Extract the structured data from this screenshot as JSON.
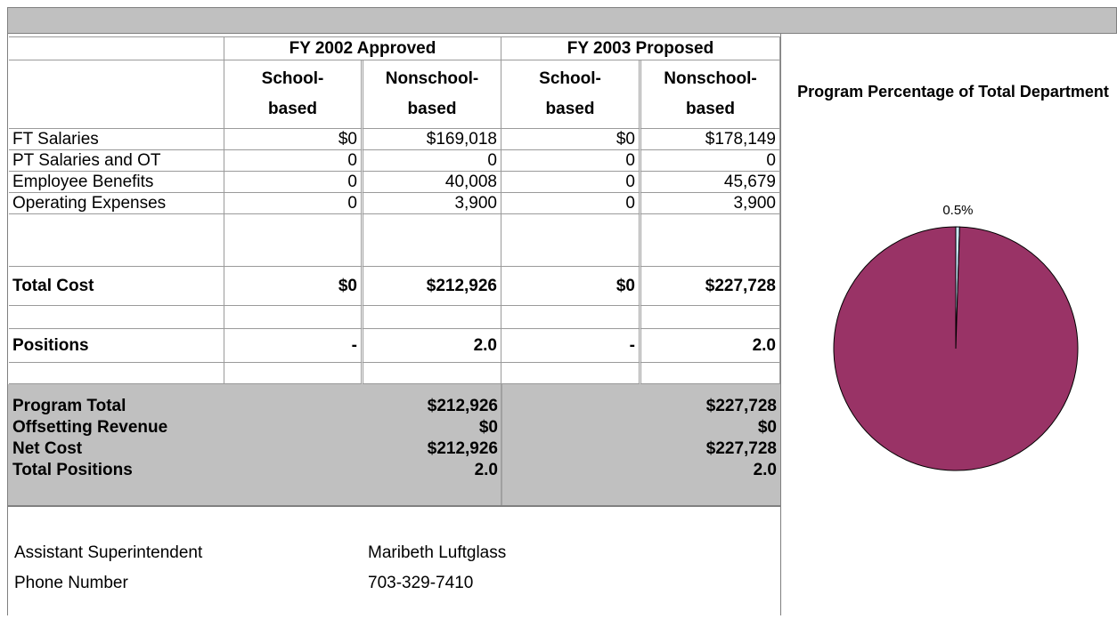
{
  "header": {
    "groups": [
      "FY 2002 Approved",
      "FY 2003 Proposed"
    ],
    "columns": [
      [
        "School-",
        "based"
      ],
      [
        "Nonschool-",
        "based"
      ],
      [
        "School-",
        "based"
      ],
      [
        "Nonschool-",
        "based"
      ]
    ]
  },
  "table": {
    "rows": [
      [
        "FT Salaries",
        "$0",
        "$169,018",
        "$0",
        "$178,149"
      ],
      [
        "PT Salaries and OT",
        "0",
        "0",
        "0",
        "0"
      ],
      [
        "Employee Benefits",
        "0",
        "40,008",
        "0",
        "45,679"
      ],
      [
        "Operating Expenses",
        "0",
        "3,900",
        "0",
        "3,900"
      ]
    ],
    "total_cost": [
      "Total Cost",
      "$0",
      "$212,926",
      "$0",
      "$227,728"
    ],
    "positions": [
      "Positions",
      "-",
      "2.0",
      "-",
      "2.0"
    ]
  },
  "summary": {
    "rows": [
      [
        "Program Total",
        "$212,926",
        "$227,728"
      ],
      [
        "Offsetting Revenue",
        "$0",
        "$0"
      ],
      [
        "Net Cost",
        "$212,926",
        "$227,728"
      ],
      [
        "Total Positions",
        "2.0",
        "2.0"
      ]
    ]
  },
  "contact": [
    [
      "Assistant Superintendent",
      "Maribeth Luftglass"
    ],
    [
      "Phone Number",
      "703-329-7410"
    ]
  ],
  "chart_data": {
    "type": "pie",
    "title": "Program Percentage of Total Department",
    "values": [
      0.5,
      99.5
    ],
    "value_labels": [
      "0.5%",
      null
    ],
    "colors": [
      "#ccecff",
      "#993366"
    ]
  }
}
